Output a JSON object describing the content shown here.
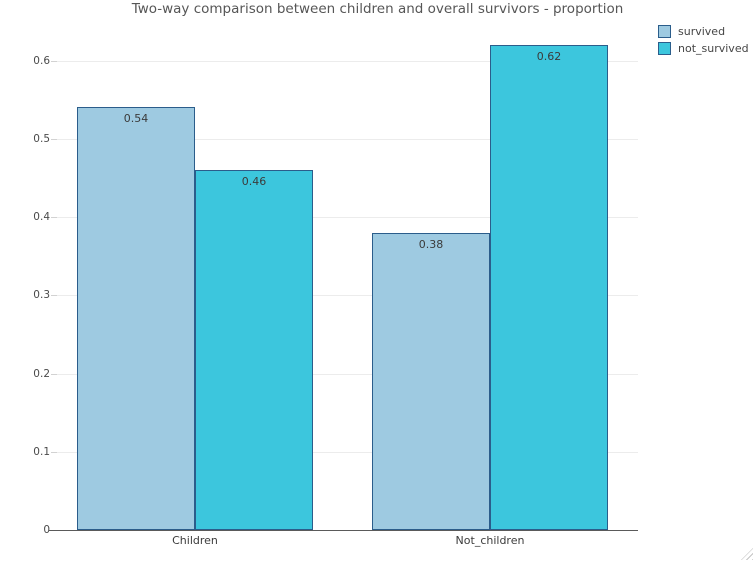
{
  "chart_data": {
    "type": "bar",
    "title": "Two-way comparison between children and overall survivors - proportion",
    "categories": [
      "Children",
      "Not_children"
    ],
    "series": [
      {
        "name": "survived",
        "values": [
          0.54,
          0.38
        ],
        "labels": [
          "0.54",
          "0.38"
        ],
        "color": "#9ecae1"
      },
      {
        "name": "not_survived",
        "values": [
          0.46,
          0.62
        ],
        "labels": [
          "0.46",
          "0.62"
        ],
        "color": "#3cc6dd"
      }
    ],
    "yticks": [
      0,
      0.1,
      0.2,
      0.3,
      0.4,
      0.5,
      0.6
    ],
    "ytick_labels": [
      "0",
      "0.1",
      "0.2",
      "0.3",
      "0.4",
      "0.5",
      "0.6"
    ],
    "ylim": [
      0,
      0.65
    ],
    "xlabel": "",
    "ylabel": "",
    "grid": true,
    "legend_position": "top-right",
    "colors": {
      "bar_border": "#2b5d8b",
      "axis_line": "#5a5a5a",
      "gridline": "#ececec",
      "title_text": "#565656",
      "tick_text": "#4a4a4a",
      "bar_label_text": "#3b3b3b"
    }
  },
  "icons": {
    "resize_grip_icon": "diagonal-grip-dots"
  }
}
